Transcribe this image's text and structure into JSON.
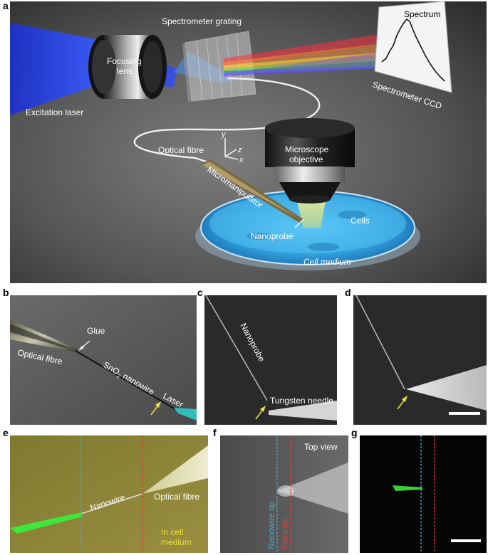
{
  "panel_labels": {
    "a": "a",
    "b": "b",
    "c": "c",
    "d": "d",
    "e": "e",
    "f": "f",
    "g": "g"
  },
  "panel_a": {
    "spectrum": "Spectrum",
    "spectrometer_grating": "Spectrometer grating",
    "focusing_lens_1": "Focusing",
    "focusing_lens_2": "lens",
    "excitation_laser": "Excitation laser",
    "spectrometer_ccd": "Spectrometer CCD",
    "optical_fibre": "Optical fibre",
    "axis_y": "y",
    "axis_z": "z",
    "axis_x": "x",
    "microscope_objective_1": "Microscope",
    "microscope_objective_2": "objective",
    "micromanipulator": "Micromanipulator",
    "nanoprobe": "Nanoprobe",
    "cells": "Cells",
    "cell_medium": "Cell medium"
  },
  "panel_b": {
    "glue": "Glue",
    "optical_fibre": "Optical fibre",
    "nanowire_prefix": "SnO",
    "nanowire_sub": "2",
    "nanowire_suffix": " nanowire",
    "laser": "Laser"
  },
  "panel_c": {
    "nanoprobe": "Nanoprobe",
    "tungsten_needle": "Tungsten needle"
  },
  "panel_e": {
    "nanowire": "Nanowire",
    "optical_fibre": "Optical fibre",
    "in_cell_1": "In cell",
    "in_cell_2": "medium"
  },
  "panel_f": {
    "top_view": "Top view",
    "nanowire_tip": "Nanowire tip",
    "fibre_tip": "Fibre tip"
  },
  "colors": {
    "blue_dash": "#4fa3c7",
    "red_dash": "#d8403a",
    "yellow_arrow": "#e8e23a",
    "laser_blue": "#2a4cff",
    "green": "#3ee83a",
    "cell_blue": "#3fb3e8"
  }
}
